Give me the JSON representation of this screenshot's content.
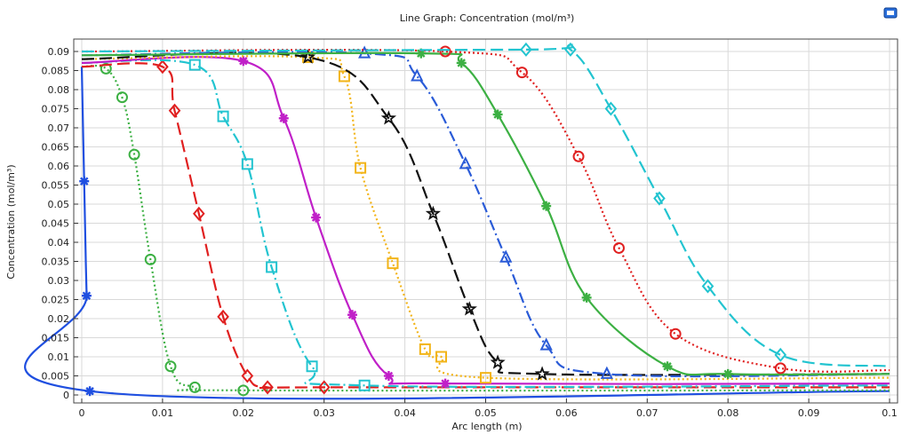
{
  "chart_data": {
    "type": "line",
    "title": "Line Graph: Concentration (mol/m³)",
    "xlabel": "Arc length (m)",
    "ylabel": "Concentration (mol/m³)",
    "xlim": [
      0,
      0.1
    ],
    "ylim": [
      0,
      0.09
    ],
    "xticks": [
      "0",
      "0.01",
      "0.02",
      "0.03",
      "0.04",
      "0.05",
      "0.06",
      "0.07",
      "0.08",
      "0.09",
      "0.1"
    ],
    "yticks": [
      "0",
      "0.005",
      "0.01",
      "0.015",
      "0.02",
      "0.025",
      "0.03",
      "0.035",
      "0.04",
      "0.045",
      "0.05",
      "0.055",
      "0.06",
      "0.065",
      "0.07",
      "0.075",
      "0.08",
      "0.085",
      "0.09"
    ],
    "grid": true,
    "series": [
      {
        "color": "#1f4fe0",
        "dash": "solid",
        "marker": "asterisk",
        "x": [
          0,
          0.0003,
          0.0006,
          0.001,
          0.1
        ],
        "y": [
          0.086,
          0.056,
          0.026,
          0.001,
          0.001
        ]
      },
      {
        "color": "#3cb043",
        "dash": "dot",
        "marker": "circle",
        "x": [
          0,
          0.003,
          0.005,
          0.0065,
          0.0085,
          0.011,
          0.014,
          0.02,
          0.1
        ],
        "y": [
          0.086,
          0.0855,
          0.078,
          0.063,
          0.0355,
          0.0075,
          0.002,
          0.0012,
          0.0012
        ]
      },
      {
        "color": "#e02020",
        "dash": "dash",
        "marker": "diamond",
        "x": [
          0,
          0.01,
          0.0115,
          0.0145,
          0.0175,
          0.0205,
          0.023,
          0.03,
          0.1
        ],
        "y": [
          0.086,
          0.086,
          0.0745,
          0.0475,
          0.0205,
          0.005,
          0.002,
          0.002,
          0.002
        ]
      },
      {
        "color": "#22c4d0",
        "dash": "dashdot",
        "marker": "square",
        "x": [
          0,
          0.014,
          0.0175,
          0.0205,
          0.0235,
          0.0285,
          0.035,
          0.1
        ],
        "y": [
          0.087,
          0.0865,
          0.073,
          0.0605,
          0.0335,
          0.0075,
          0.0025,
          0.0025
        ]
      },
      {
        "color": "#c020c8",
        "dash": "solid",
        "marker": "asterisk",
        "x": [
          0,
          0.02,
          0.025,
          0.029,
          0.0335,
          0.038,
          0.045,
          0.1
        ],
        "y": [
          0.087,
          0.0875,
          0.0725,
          0.0465,
          0.021,
          0.005,
          0.003,
          0.003
        ]
      },
      {
        "color": "#f2b418",
        "dash": "dot",
        "marker": "square",
        "x": [
          0,
          0.028,
          0.0325,
          0.0345,
          0.0385,
          0.0425,
          0.0445,
          0.05,
          0.1
        ],
        "y": [
          0.088,
          0.0885,
          0.0835,
          0.0595,
          0.0345,
          0.012,
          0.01,
          0.0045,
          0.0045
        ]
      },
      {
        "color": "#111111",
        "dash": "dash",
        "marker": "star",
        "x": [
          0,
          0.028,
          0.038,
          0.0435,
          0.048,
          0.0515,
          0.057,
          0.1
        ],
        "y": [
          0.088,
          0.0885,
          0.0725,
          0.0475,
          0.0225,
          0.0085,
          0.0055,
          0.0055
        ]
      },
      {
        "color": "#2a5bd7",
        "dash": "dashdot",
        "marker": "triangle",
        "x": [
          0,
          0.035,
          0.0415,
          0.0475,
          0.0525,
          0.0575,
          0.065,
          0.1
        ],
        "y": [
          0.089,
          0.0895,
          0.0835,
          0.0605,
          0.036,
          0.013,
          0.0055,
          0.0055
        ]
      },
      {
        "color": "#3cb043",
        "dash": "solid",
        "marker": "asterisk",
        "x": [
          0,
          0.042,
          0.047,
          0.0515,
          0.0575,
          0.0625,
          0.0725,
          0.08,
          0.1
        ],
        "y": [
          0.089,
          0.0895,
          0.087,
          0.0735,
          0.0495,
          0.0255,
          0.0075,
          0.0055,
          0.0055
        ]
      },
      {
        "color": "#e02020",
        "dash": "dot",
        "marker": "circle",
        "x": [
          0,
          0.045,
          0.0545,
          0.0615,
          0.0665,
          0.0735,
          0.0865,
          0.1
        ],
        "y": [
          0.09,
          0.09,
          0.0845,
          0.0625,
          0.0385,
          0.016,
          0.007,
          0.0065
        ]
      },
      {
        "color": "#22c4d0",
        "dash": "dash",
        "marker": "diamond",
        "x": [
          0,
          0.055,
          0.0605,
          0.0655,
          0.0715,
          0.0775,
          0.0865,
          0.1
        ],
        "y": [
          0.09,
          0.0905,
          0.0905,
          0.075,
          0.0515,
          0.0285,
          0.0105,
          0.0075
        ]
      }
    ]
  }
}
